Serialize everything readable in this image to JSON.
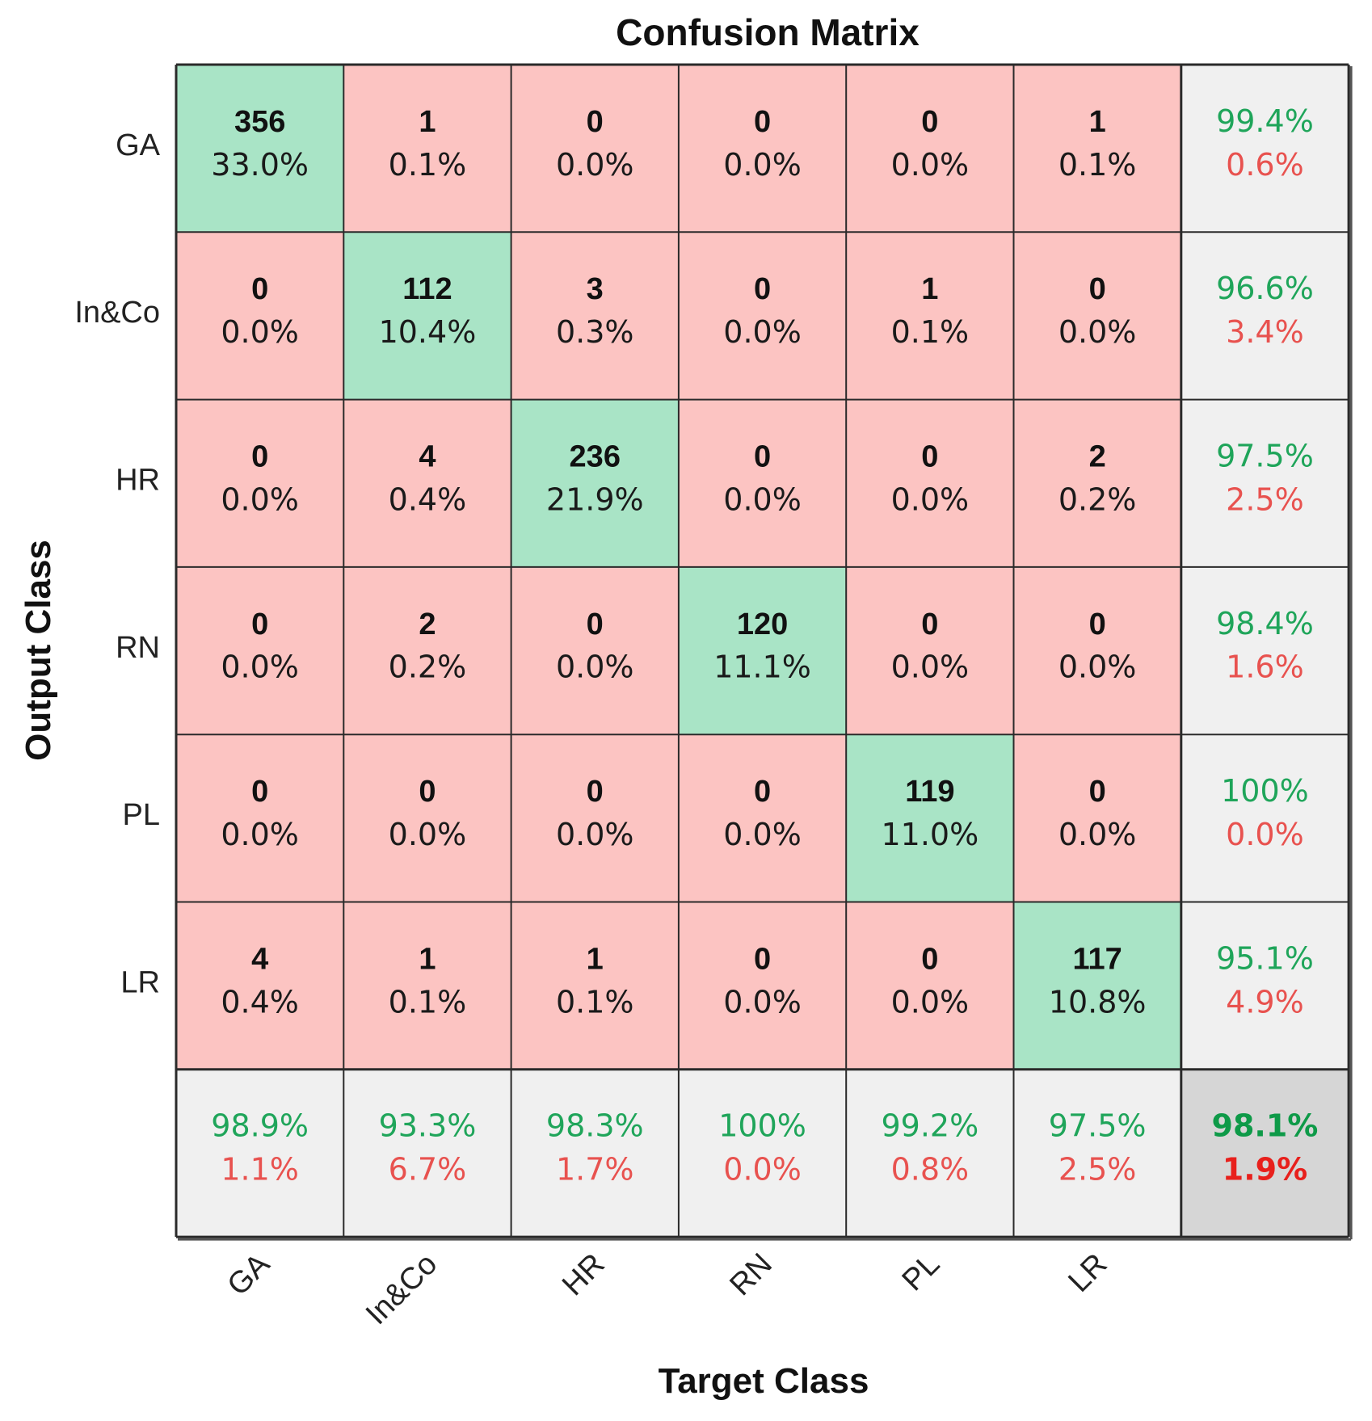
{
  "chart_data": {
    "type": "heatmap",
    "title": "Confusion Matrix",
    "xlabel": "Target Class",
    "ylabel": "Output Class",
    "row_labels": [
      "GA",
      "In&Co",
      "HR",
      "RN",
      "PL",
      "LR"
    ],
    "col_labels": [
      "GA",
      "In&Co",
      "HR",
      "RN",
      "PL",
      "LR"
    ],
    "counts": [
      [
        356,
        1,
        0,
        0,
        0,
        1
      ],
      [
        0,
        112,
        3,
        0,
        1,
        0
      ],
      [
        0,
        4,
        236,
        0,
        0,
        2
      ],
      [
        0,
        2,
        0,
        120,
        0,
        0
      ],
      [
        0,
        0,
        0,
        0,
        119,
        0
      ],
      [
        4,
        1,
        1,
        0,
        0,
        117
      ]
    ],
    "percents": [
      [
        "33.0%",
        "0.1%",
        "0.0%",
        "0.0%",
        "0.0%",
        "0.1%"
      ],
      [
        "0.0%",
        "10.4%",
        "0.3%",
        "0.0%",
        "0.1%",
        "0.0%"
      ],
      [
        "0.0%",
        "0.4%",
        "21.9%",
        "0.0%",
        "0.0%",
        "0.2%"
      ],
      [
        "0.0%",
        "0.2%",
        "0.0%",
        "11.1%",
        "0.0%",
        "0.0%"
      ],
      [
        "0.0%",
        "0.0%",
        "0.0%",
        "0.0%",
        "11.0%",
        "0.0%"
      ],
      [
        "0.4%",
        "0.1%",
        "0.1%",
        "0.0%",
        "0.0%",
        "10.8%"
      ]
    ],
    "row_summary": [
      {
        "correct": "99.4%",
        "error": "0.6%"
      },
      {
        "correct": "96.6%",
        "error": "3.4%"
      },
      {
        "correct": "97.5%",
        "error": "2.5%"
      },
      {
        "correct": "98.4%",
        "error": "1.6%"
      },
      {
        "correct": "100%",
        "error": "0.0%"
      },
      {
        "correct": "95.1%",
        "error": "4.9%"
      }
    ],
    "col_summary": [
      {
        "correct": "98.9%",
        "error": "1.1%"
      },
      {
        "correct": "93.3%",
        "error": "6.7%"
      },
      {
        "correct": "98.3%",
        "error": "1.7%"
      },
      {
        "correct": "100%",
        "error": "0.0%"
      },
      {
        "correct": "99.2%",
        "error": "0.8%"
      },
      {
        "correct": "97.5%",
        "error": "2.5%"
      }
    ],
    "overall": {
      "correct": "98.1%",
      "error": "1.9%"
    },
    "colors": {
      "diagonal": "#a9e4c6",
      "off_diagonal": "#fcc4c2",
      "summary": "#f0f0f0",
      "overall": "#d6d6d6",
      "correct_text": "#1fa55a",
      "error_text": "#e8524f",
      "overall_correct_text": "#0e9a48",
      "overall_error_text": "#e8201c",
      "grid_line": "#2a2a2a"
    }
  }
}
